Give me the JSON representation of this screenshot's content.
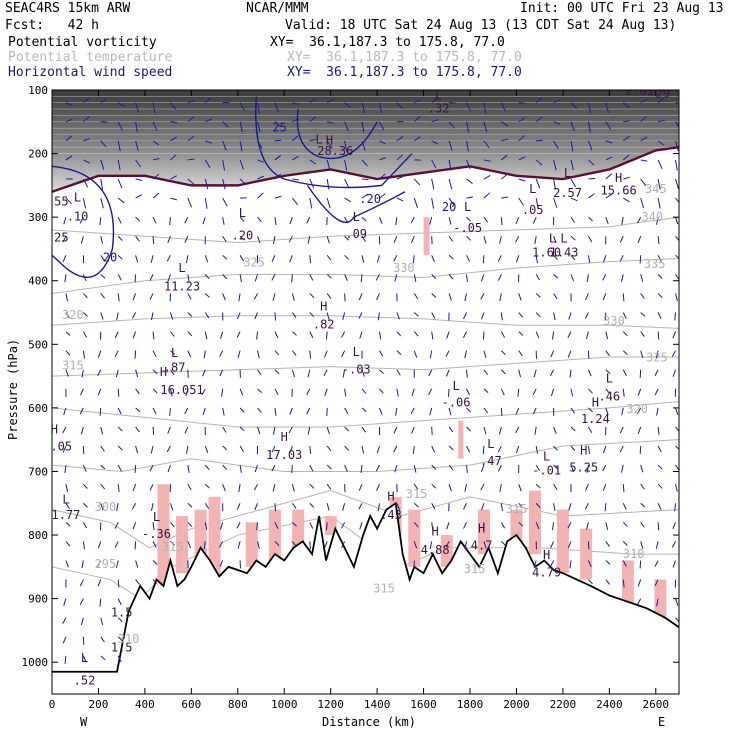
{
  "header": {
    "model": "SEAC4RS 15km ARW",
    "center": "NCAR/MMM",
    "init": "Init: 00 UTC Fri 23 Aug 13",
    "fcst": "Fcst:   42 h",
    "valid": "Valid: 18 UTC Sat 24 Aug 13 (13 CDT Sat 24 Aug 13)"
  },
  "fields": [
    {
      "name": "Potential vorticity",
      "coords": "XY=  36.1,187.3 to 175.8, 77.0",
      "color": "#000000"
    },
    {
      "name": "Potential temperature",
      "coords": "XY=  36.1,187.3 to 175.8, 77.0",
      "color": "#b8b8b8"
    },
    {
      "name": "Horizontal wind speed",
      "coords": "XY=  36.1,187.3 to 175.8, 77.0",
      "color": "#1a1a80"
    }
  ],
  "chart_data": {
    "type": "cross-section",
    "xlabel": "Distance (km)",
    "ylabel": "Pressure (hPa)",
    "xlim": [
      0,
      2700
    ],
    "ylim": [
      1050,
      100
    ],
    "x_ticks": [
      0,
      200,
      400,
      600,
      800,
      1000,
      1200,
      1400,
      1600,
      1800,
      2000,
      2200,
      2400,
      2600
    ],
    "y_ticks": [
      100,
      200,
      300,
      400,
      500,
      600,
      700,
      800,
      900,
      1000
    ],
    "x_end_labels": {
      "left": "W",
      "right": "E"
    },
    "terrain_pressure": {
      "x": [
        0,
        280,
        330,
        380,
        420,
        450,
        480,
        510,
        540,
        570,
        600,
        640,
        680,
        720,
        760,
        800,
        840,
        880,
        920,
        960,
        1000,
        1040,
        1080,
        1120,
        1150,
        1180,
        1220,
        1260,
        1300,
        1340,
        1370,
        1400,
        1440,
        1480,
        1510,
        1540,
        1560,
        1600,
        1640,
        1680,
        1720,
        1760,
        1800,
        1840,
        1880,
        1920,
        1960,
        2000,
        2040,
        2080,
        2120,
        2160,
        2200,
        2260,
        2320,
        2400,
        2480,
        2560,
        2640,
        2700
      ],
      "p": [
        1015,
        1015,
        920,
        880,
        900,
        870,
        880,
        840,
        880,
        870,
        850,
        820,
        840,
        865,
        850,
        855,
        860,
        840,
        850,
        830,
        840,
        820,
        810,
        830,
        770,
        840,
        790,
        820,
        850,
        800,
        770,
        790,
        760,
        750,
        830,
        870,
        850,
        860,
        830,
        860,
        840,
        810,
        830,
        850,
        820,
        860,
        810,
        800,
        820,
        850,
        840,
        855,
        860,
        870,
        880,
        895,
        905,
        915,
        930,
        945
      ]
    },
    "pv_labels": [
      {
        "t": "L",
        "x": 110,
        "p": 275
      },
      {
        "t": ".10",
        "x": 110,
        "p": 305
      },
      {
        "t": ".55",
        "x": 25,
        "p": 282
      },
      {
        "t": ".25",
        "x": 25,
        "p": 338
      },
      {
        "t": "L",
        "x": 820,
        "p": 300
      },
      {
        "t": ".20",
        "x": 820,
        "p": 335
      },
      {
        "t": "L",
        "x": 1150,
        "p": 184
      },
      {
        "t": "H",
        "x": 1195,
        "p": 186
      },
      {
        "t": "28.36",
        "x": 1220,
        "p": 202
      },
      {
        "t": ".32",
        "x": 1665,
        "p": 135
      },
      {
        "t": "L",
        "x": 1665,
        "p": 115
      },
      {
        "t": "L",
        "x": 1790,
        "p": 290
      },
      {
        "t": "-.05",
        "x": 1790,
        "p": 323
      },
      {
        "t": "L",
        "x": 2070,
        "p": 262
      },
      {
        "t": ".05",
        "x": 2070,
        "p": 295
      },
      {
        "t": "L",
        "x": 2220,
        "p": 237
      },
      {
        "t": "2.57",
        "x": 2220,
        "p": 268
      },
      {
        "t": "H",
        "x": 2440,
        "p": 245
      },
      {
        "t": "15.66",
        "x": 2440,
        "p": 264
      },
      {
        "t": "2.01",
        "x": 2530,
        "p": 108
      },
      {
        "t": "29",
        "x": 2630,
        "p": 112
      },
      {
        "t": "L",
        "x": 1310,
        "p": 306
      },
      {
        "t": ".09",
        "x": 1310,
        "p": 333
      },
      {
        "t": "L",
        "x": 2155,
        "p": 340
      },
      {
        "t": "L",
        "x": 2205,
        "p": 340
      },
      {
        "t": "1.60",
        "x": 2130,
        "p": 362
      },
      {
        "t": "1.43",
        "x": 2205,
        "p": 362
      },
      {
        "t": "L",
        "x": 560,
        "p": 386
      },
      {
        "t": "11.23",
        "x": 560,
        "p": 415
      },
      {
        "t": "H",
        "x": 1170,
        "p": 447
      },
      {
        "t": ".82",
        "x": 1170,
        "p": 475
      },
      {
        "t": "L",
        "x": 528,
        "p": 520
      },
      {
        "t": ".87",
        "x": 528,
        "p": 543
      },
      {
        "t": "H",
        "x": 480,
        "p": 550
      },
      {
        "t": "16.051",
        "x": 560,
        "p": 578
      },
      {
        "t": "L",
        "x": 1310,
        "p": 518
      },
      {
        "t": "-.03",
        "x": 1310,
        "p": 546
      },
      {
        "t": "L",
        "x": 1740,
        "p": 572
      },
      {
        "t": "-.06",
        "x": 1740,
        "p": 598
      },
      {
        "t": "L",
        "x": 2400,
        "p": 560
      },
      {
        "t": ".46",
        "x": 2400,
        "p": 588
      },
      {
        "t": "H",
        "x": 2340,
        "p": 598
      },
      {
        "t": "1.24",
        "x": 2340,
        "p": 624
      },
      {
        "t": "H",
        "x": 10,
        "p": 640
      },
      {
        "t": ".05",
        "x": 40,
        "p": 667
      },
      {
        "t": "H",
        "x": 1000,
        "p": 652
      },
      {
        "t": "17.03",
        "x": 1000,
        "p": 680
      },
      {
        "t": "L",
        "x": 1890,
        "p": 663
      },
      {
        "t": ".47",
        "x": 1890,
        "p": 690
      },
      {
        "t": "L",
        "x": 2130,
        "p": 683
      },
      {
        "t": "-.01",
        "x": 2130,
        "p": 705
      },
      {
        "t": "H",
        "x": 2290,
        "p": 673
      },
      {
        "t": "5.25",
        "x": 2290,
        "p": 700
      },
      {
        "t": "L",
        "x": 60,
        "p": 750
      },
      {
        "t": "1.77",
        "x": 60,
        "p": 775
      },
      {
        "t": "L",
        "x": 450,
        "p": 778
      },
      {
        "t": "-.36",
        "x": 450,
        "p": 805
      },
      {
        "t": "H",
        "x": 1460,
        "p": 746
      },
      {
        "t": ".43",
        "x": 1460,
        "p": 775
      },
      {
        "t": "H",
        "x": 1650,
        "p": 801
      },
      {
        "t": "4.88",
        "x": 1650,
        "p": 830
      },
      {
        "t": "H",
        "x": 1850,
        "p": 796
      },
      {
        "t": "4.7",
        "x": 1850,
        "p": 823
      },
      {
        "t": "H",
        "x": 2130,
        "p": 838
      },
      {
        "t": "4.79",
        "x": 2130,
        "p": 865
      },
      {
        "t": "1.5",
        "x": 300,
        "p": 928
      },
      {
        "t": "1.5",
        "x": 300,
        "p": 983
      },
      {
        "t": "L",
        "x": 140,
        "p": 1000
      },
      {
        "t": ".52",
        "x": 140,
        "p": 1035
      }
    ],
    "theta_labels": [
      {
        "t": "345",
        "x": 2600,
        "p": 262
      },
      {
        "t": "340",
        "x": 2585,
        "p": 306
      },
      {
        "t": "335",
        "x": 2595,
        "p": 380
      },
      {
        "t": "330",
        "x": 1515,
        "p": 386
      },
      {
        "t": "330",
        "x": 2420,
        "p": 470
      },
      {
        "t": "325",
        "x": 870,
        "p": 378
      },
      {
        "t": "325",
        "x": 2605,
        "p": 527
      },
      {
        "t": "320",
        "x": 90,
        "p": 460
      },
      {
        "t": "320",
        "x": 2520,
        "p": 608
      },
      {
        "t": "315",
        "x": 90,
        "p": 540
      },
      {
        "t": "300",
        "x": 230,
        "p": 762
      },
      {
        "t": "295",
        "x": 230,
        "p": 852
      },
      {
        "t": "310",
        "x": 2505,
        "p": 836
      },
      {
        "t": "315",
        "x": 2000,
        "p": 765
      },
      {
        "t": "315",
        "x": 1430,
        "p": 890
      },
      {
        "t": "315",
        "x": 1820,
        "p": 860
      },
      {
        "t": "310",
        "x": 330,
        "p": 970
      },
      {
        "t": "315",
        "x": 520,
        "p": 825
      },
      {
        "t": "315",
        "x": 1570,
        "p": 742
      }
    ],
    "wind_labels": [
      {
        "t": "25",
        "x": 980,
        "p": 165
      },
      {
        "t": "20",
        "x": 1710,
        "p": 290
      },
      {
        "t": "20",
        "x": 250,
        "p": 370
      },
      {
        "t": ".20",
        "x": 1370,
        "p": 278
      }
    ]
  }
}
